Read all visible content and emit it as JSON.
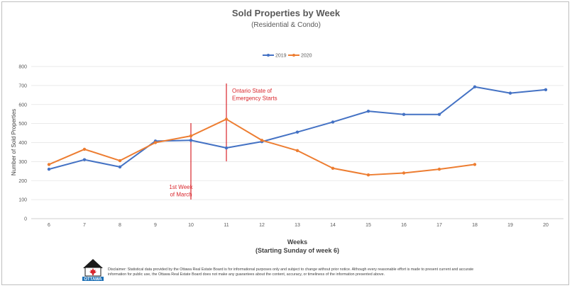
{
  "chart_data": {
    "type": "line",
    "title": "Sold Properties by Week",
    "subtitle": "(Residential & Condo)",
    "xlabel": "Weeks",
    "xlabel_sub": "(Starting Sunday of week 6)",
    "ylabel": "Number of Sold Properties",
    "ylim": [
      0,
      800
    ],
    "yticks": [
      "0",
      "100",
      "200",
      "300",
      "400",
      "500",
      "600",
      "700",
      "800"
    ],
    "x": [
      6,
      7,
      8,
      9,
      10,
      11,
      12,
      13,
      14,
      15,
      16,
      17,
      18,
      19,
      20
    ],
    "xticks": [
      "6",
      "7",
      "8",
      "9",
      "10",
      "11",
      "12",
      "13",
      "14",
      "15",
      "16",
      "17",
      "18",
      "19",
      "20"
    ],
    "legend_position": "top-center",
    "series": [
      {
        "name": "2019",
        "color": "#4472c4",
        "values": [
          260,
          310,
          272,
          408,
          412,
          372,
          405,
          455,
          508,
          565,
          548,
          548,
          693,
          660,
          678
        ]
      },
      {
        "name": "2020",
        "color": "#ed7d31",
        "values": [
          285,
          365,
          305,
          400,
          435,
          523,
          412,
          358,
          265,
          230,
          240,
          260,
          285,
          null,
          null
        ]
      }
    ],
    "annotations": [
      {
        "x": 10,
        "lines": [
          "1st Week",
          "of March"
        ],
        "color": "#d9262c"
      },
      {
        "x": 11,
        "lines": [
          "Ontario State of",
          "Emergency Starts"
        ],
        "color": "#d9262c"
      }
    ]
  },
  "footer": {
    "logo_text": "OTTAWA",
    "disclaimer": "Disclaimer: Statistical data provided by the Ottawa Real Estate Board is for informational purposes only and subject to change without prior notice. Although every reasonable effort is made to present current and accurate information for public use, the Ottawa Real Estate Board does not make any guarantees about the content, accuracy, or timeliness of the information presented above."
  }
}
